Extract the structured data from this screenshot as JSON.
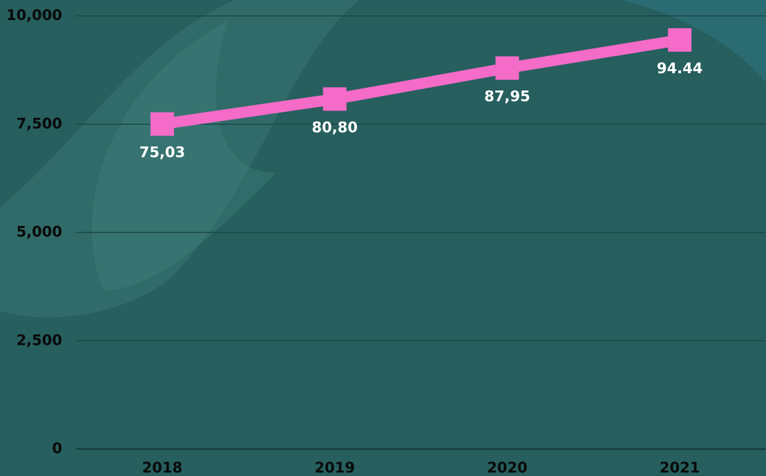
{
  "chart_data": {
    "type": "line",
    "categories": [
      "2018",
      "2019",
      "2020",
      "2021"
    ],
    "values": [
      7503,
      8080,
      8795,
      9444
    ],
    "value_labels": [
      "75,03",
      "80,80",
      "87,95",
      "94.44"
    ],
    "color": "#f56bc8",
    "ylim": [
      0,
      10000
    ],
    "yticks": [
      0,
      {
        "value": 2500,
        "label": "2,500"
      },
      {
        "value": 5000,
        "label": "5,000"
      },
      {
        "value": 7500,
        "label": "7,500"
      },
      {
        "value": 10000,
        "label": "10,000"
      }
    ],
    "grid": true
  }
}
